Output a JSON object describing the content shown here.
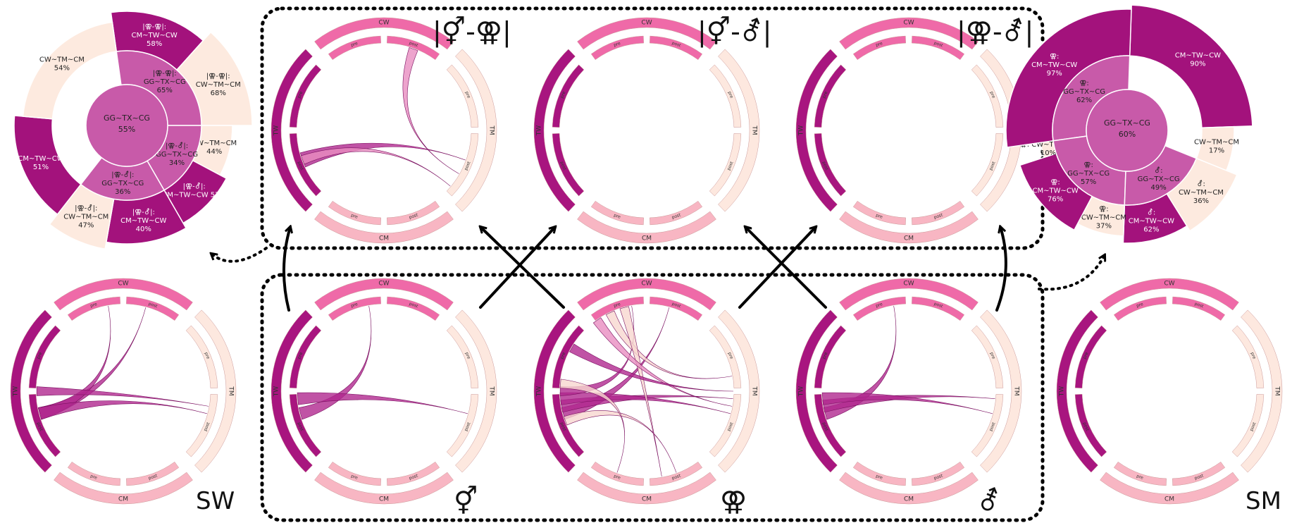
{
  "colors": {
    "cw": "#ef6aa8",
    "tw": "#a8157f",
    "tm": "#fde8df",
    "cm": "#f8b6c3",
    "inner_purple": "#c85aa9",
    "dark": "#a3127c",
    "cream": "#fdeadf",
    "arrow": "#000000"
  },
  "chords": {
    "segments": {
      "cw": "CW",
      "tw": "TW",
      "tm": "TM",
      "cm": "CM"
    },
    "sub": {
      "pre": "pre",
      "post": "post"
    }
  },
  "group_labels": {
    "sw": "SW",
    "sm": "SM",
    "female": "⚥",
    "intersex": "⚢",
    "male": "⚦",
    "diff1": "|⚥-⚢|",
    "diff2": "|⚥-⚦|",
    "diff3": "|⚢-⚦|"
  },
  "sunburst_left": {
    "center": {
      "line1": "GG~TX~CG",
      "line2": "55%"
    },
    "mid": [
      {
        "line1": "|⚢-⚢|:",
        "line2": "GG~TX~CG",
        "line3": "65%"
      },
      {
        "line1": "|⚢-⚦|:",
        "line2": "GG~TX~CG",
        "line3": "34%"
      },
      {
        "line1": "|⚢-⚦|:",
        "line2": "GG~TX~CG",
        "line3": "36%"
      }
    ],
    "outer": [
      {
        "line1": "|⚢-⚢|:",
        "line2": "CM~TW~CW",
        "line3": "58%"
      },
      {
        "line1": "|⚢-⚢|:",
        "line2": "CW~TM~CM",
        "line3": "68%"
      },
      {
        "line1": "CW~TM~CM",
        "line2": "44%"
      },
      {
        "line1": "|⚢-⚦|:",
        "line2": "CM~TW~CW 57%"
      },
      {
        "line1": "|⚢-⚦|:",
        "line2": "CM~TW~CW",
        "line3": "40%"
      },
      {
        "line1": "|⚢-⚦|:",
        "line2": "CW~TM~CM",
        "line3": "47%"
      },
      {
        "line1": "CM~TW~CW",
        "line2": "51%"
      },
      {
        "line1": "CW~TM~CM",
        "line2": "54%"
      }
    ]
  },
  "sunburst_right": {
    "center": {
      "line1": "GG~TX~CG",
      "line2": "60%"
    },
    "mid": [
      {
        "line1": "⚢:",
        "line2": "GG~TX~CG",
        "line3": "62%"
      },
      {
        "line1": "⚢:",
        "line2": "GG~TX~CG",
        "line3": "57%"
      },
      {
        "line1": "⚦:",
        "line2": "GG~TX~CG",
        "line3": "49%"
      }
    ],
    "outer": [
      {
        "line1": "CM~TW~CW",
        "line2": "90%"
      },
      {
        "line1": "CW~TM~CM",
        "line2": "17%"
      },
      {
        "line1": "⚦:",
        "line2": "CW~TM~CM",
        "line3": "36%"
      },
      {
        "line1": "⚦:",
        "line2": "CM~TW~CW",
        "line3": "62%"
      },
      {
        "line1": "⚢:",
        "line2": "CW~TM~CM",
        "line3": "37%"
      },
      {
        "line1": "⚢:",
        "line2": "CM~TW~CW",
        "line3": "76%"
      },
      {
        "line1": "⚢: CW~TM~CM",
        "line2": "10%"
      },
      {
        "line1": "⚢:",
        "line2": "CM~TW~CW",
        "line3": "97%"
      }
    ]
  }
}
